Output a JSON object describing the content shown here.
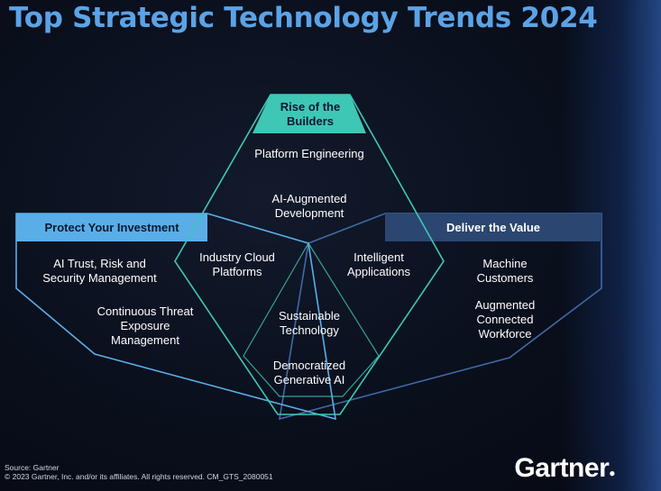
{
  "title": "Top Strategic Technology Trends 2024",
  "themes": {
    "top": "Rise of the Builders",
    "left": "Protect Your Investment",
    "right": "Deliver the Value"
  },
  "trends": {
    "platform_engineering": "Platform Engineering",
    "ai_augmented_development": "AI-Augmented Development",
    "industry_cloud_platforms": "Industry Cloud Platforms",
    "intelligent_applications": "Intelligent Applications",
    "ai_trism": "AI Trust, Risk and Security Management",
    "ctem": "Continuous Threat Exposure Management",
    "sustainable_technology": "Sustainable Technology",
    "democratized_generative_ai": "Democratized Generative AI",
    "machine_customers": "Machine Customers",
    "augmented_connected_workforce": "Augmented Connected Workforce"
  },
  "footer": {
    "source": "Source: Gartner",
    "copyright": "© 2023 Gartner, Inc. and/or its affiliates. All rights reserved. CM_GTS_2080051"
  },
  "logo": "Gartner",
  "colors": {
    "title": "#5ba3e6",
    "top_header": "#3ec7b5",
    "left_header": "#5aaee8",
    "right_header": "#2b4670",
    "top_outline": "#3ec7b5",
    "left_outline": "#5aaee8",
    "right_outline": "#3f6aa6"
  }
}
